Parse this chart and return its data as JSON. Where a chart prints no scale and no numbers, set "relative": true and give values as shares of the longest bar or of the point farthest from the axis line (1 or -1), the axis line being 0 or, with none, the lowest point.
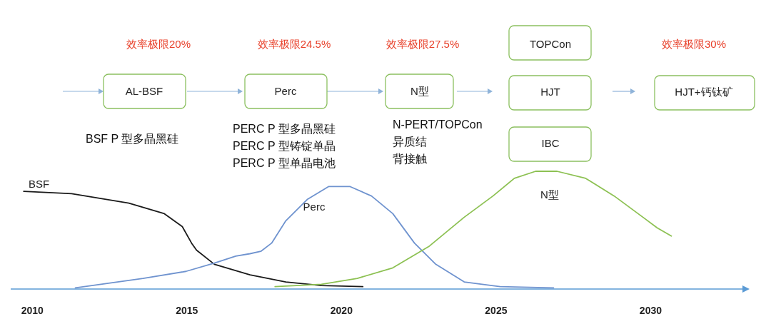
{
  "chart_data": {
    "type": "line",
    "relative": true,
    "xlim": [
      2009.3,
      2033.2
    ],
    "xticks": [
      2010,
      2015,
      2020,
      2025,
      2030
    ],
    "series": [
      {
        "name": "BSF",
        "color": "#1a1a1a",
        "x": [
          2009.72,
          2011.27,
          2013.12,
          2014.27,
          2014.85,
          2015.15,
          2015.31,
          2015.89,
          2017.04,
          2018.2,
          2019.35,
          2020.69
        ],
        "values": [
          0.83,
          0.81,
          0.73,
          0.64,
          0.53,
          0.39,
          0.33,
          0.21,
          0.12,
          0.06,
          0.03,
          0.02
        ]
      },
      {
        "name": "Perc",
        "color": "#6f93cf",
        "x": [
          2011.39,
          2013.58,
          2014.97,
          2015.89,
          2016.58,
          2017.04,
          2017.39,
          2017.74,
          2018.2,
          2018.89,
          2019.58,
          2020.28,
          2020.97,
          2021.66,
          2022.36,
          2023.05,
          2023.97,
          2025.13,
          2026.86
        ],
        "values": [
          0.01,
          0.09,
          0.15,
          0.22,
          0.28,
          0.3,
          0.32,
          0.39,
          0.58,
          0.76,
          0.87,
          0.87,
          0.79,
          0.64,
          0.39,
          0.21,
          0.06,
          0.02,
          0.01
        ]
      },
      {
        "name": "N型",
        "color": "#8dc153",
        "x": [
          2017.85,
          2019.35,
          2020.51,
          2021.66,
          2022.82,
          2023.97,
          2024.9,
          2025.59,
          2026.28,
          2026.97,
          2027.9,
          2028.82,
          2029.75,
          2030.21,
          2030.67
        ],
        "values": [
          0.02,
          0.04,
          0.09,
          0.18,
          0.36,
          0.61,
          0.79,
          0.94,
          1.0,
          1.0,
          0.94,
          0.79,
          0.61,
          0.52,
          0.45
        ]
      }
    ],
    "annotations": [
      "效率极限20%",
      "效率极限24.5%",
      "效率极限27.5%",
      "效率极限30%",
      "AL-BSF",
      "Perc",
      "N型",
      "TOPCon",
      "HJT",
      "IBC",
      "HJT+钙钛矿",
      "BSF P 型多晶黑硅",
      "PERC P 型多晶黑硅",
      "PERC P 型铸锭单晶",
      "PERC P 型单晶电池",
      "N-PERT/TOPCon",
      "异质结",
      "背接触"
    ]
  }
}
